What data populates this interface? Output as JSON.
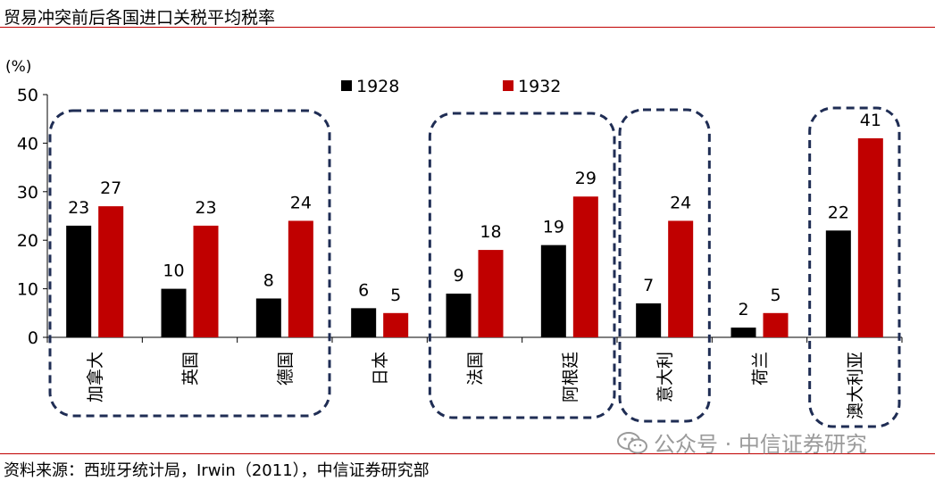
{
  "header": {
    "title": "贸易冲突前后各国进口关税平均税率"
  },
  "footer": {
    "source": "资料来源：西班牙统计局，Irwin（2011），中信证券研究部",
    "watermark": "公众号 · 中信证券研究"
  },
  "colors": {
    "series_1928": "#000000",
    "series_1932": "#c00000",
    "rule": "#c00000",
    "box": "#1f2d54"
  },
  "chart_data": {
    "type": "bar",
    "ylabel": "(%)",
    "ylim": [
      0,
      50
    ],
    "yticks": [
      0,
      10,
      20,
      30,
      40,
      50
    ],
    "grid": false,
    "legend_position": "top",
    "categories": [
      "加拿大",
      "英国",
      "德国",
      "日本",
      "法国",
      "阿根廷",
      "意大利",
      "荷兰",
      "澳大利亚"
    ],
    "series": [
      {
        "name": "1928",
        "values": [
          23,
          10,
          8,
          6,
          9,
          19,
          7,
          2,
          22
        ]
      },
      {
        "name": "1932",
        "values": [
          27,
          23,
          24,
          5,
          18,
          29,
          24,
          5,
          41
        ]
      }
    ],
    "data_labels": [
      [
        "23",
        "10",
        "8",
        "6",
        "9",
        "19",
        "7",
        "2",
        "22"
      ],
      [
        "27",
        "23",
        "24",
        "5",
        "18",
        "29",
        "24",
        "5",
        "41"
      ]
    ],
    "highlight_groups": [
      {
        "categories": [
          "加拿大",
          "英国",
          "德国"
        ]
      },
      {
        "categories": [
          "法国",
          "阿根廷"
        ]
      },
      {
        "categories": [
          "意大利"
        ]
      },
      {
        "categories": [
          "澳大利亚"
        ]
      }
    ]
  }
}
